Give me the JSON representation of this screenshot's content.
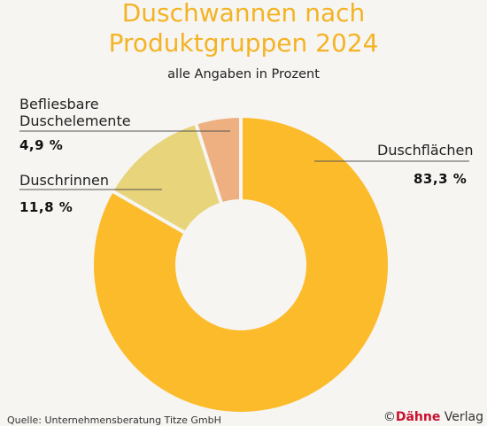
{
  "chart_data": {
    "type": "donut",
    "title_line1": "Duschwannen nach",
    "title_line2": "Produktgruppen 2024",
    "subtitle": "alle Angaben in Prozent",
    "slices": [
      {
        "label": "Duschflächen",
        "value": 83.3,
        "value_label": "83,3 %",
        "color": "#fcbb2a"
      },
      {
        "label": "Duschrinnen",
        "value": 11.8,
        "value_label": "11,8 %",
        "color": "#e8d47a"
      },
      {
        "label_line1": "Befliesbare",
        "label_line2": "Duschelemente",
        "value": 4.9,
        "value_label": "4,9 %",
        "color": "#eeb080"
      }
    ]
  },
  "footer": {
    "source": "Quelle: Unternehmensberatung Titze GmbH",
    "copyright_symbol": "©",
    "brand_red": "Dähne",
    "brand_rest": " Verlag"
  }
}
